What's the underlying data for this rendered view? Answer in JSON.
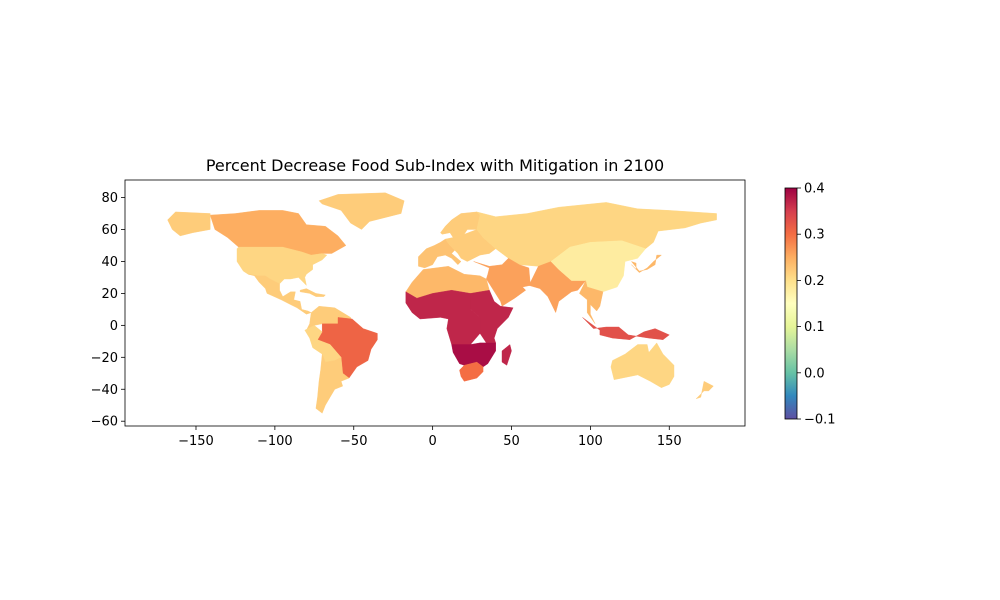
{
  "title": "Percent Decrease Food Sub-Index with Mitigation in 2100",
  "axes": {
    "x_ticks": [
      "−150",
      "−100",
      "−50",
      "0",
      "50",
      "100",
      "150"
    ],
    "y_ticks": [
      "80",
      "60",
      "40",
      "20",
      "0",
      "−20",
      "−40",
      "−60"
    ]
  },
  "colorbar": {
    "colormap": "Spectral_r",
    "min": -0.1,
    "max": 0.4,
    "tick_labels": [
      "0.4",
      "0.3",
      "0.2",
      "0.1",
      "0.0",
      "−0.1"
    ]
  },
  "chart_data": {
    "type": "choropleth",
    "title": "Percent Decrease Food Sub-Index with Mitigation in 2100",
    "xlim": [
      -195,
      198
    ],
    "ylim": [
      -63,
      91
    ],
    "colorbar_range": [
      -0.1,
      0.4
    ],
    "regions": [
      {
        "name": "Greenland",
        "value": 0.22
      },
      {
        "name": "Canada",
        "value": 0.25
      },
      {
        "name": "Alaska",
        "value": 0.22
      },
      {
        "name": "United States",
        "value": 0.21
      },
      {
        "name": "Mexico & Central America",
        "value": 0.22
      },
      {
        "name": "Caribbean",
        "value": 0.22
      },
      {
        "name": "Northern South America",
        "value": 0.22
      },
      {
        "name": "Brazil",
        "value": 0.31
      },
      {
        "name": "Andean South America",
        "value": 0.21
      },
      {
        "name": "Southern South America",
        "value": 0.22
      },
      {
        "name": "Western Europe",
        "value": 0.23
      },
      {
        "name": "Northern Europe",
        "value": 0.22
      },
      {
        "name": "Eastern Europe",
        "value": 0.22
      },
      {
        "name": "Russia & Central Asia",
        "value": 0.21
      },
      {
        "name": "Middle East",
        "value": 0.26
      },
      {
        "name": "North Africa",
        "value": 0.24
      },
      {
        "name": "Sub-Saharan Africa (West/Central)",
        "value": 0.37
      },
      {
        "name": "East Africa",
        "value": 0.37
      },
      {
        "name": "Southern Africa",
        "value": 0.39
      },
      {
        "name": "South Africa",
        "value": 0.3
      },
      {
        "name": "Madagascar",
        "value": 0.37
      },
      {
        "name": "South Asia",
        "value": 0.26
      },
      {
        "name": "China",
        "value": 0.18
      },
      {
        "name": "Southeast Asia",
        "value": 0.24
      },
      {
        "name": "Japan & Korea",
        "value": 0.24
      },
      {
        "name": "Indonesia",
        "value": 0.33
      },
      {
        "name": "Australia",
        "value": 0.21
      },
      {
        "name": "New Zealand",
        "value": 0.22
      }
    ]
  }
}
